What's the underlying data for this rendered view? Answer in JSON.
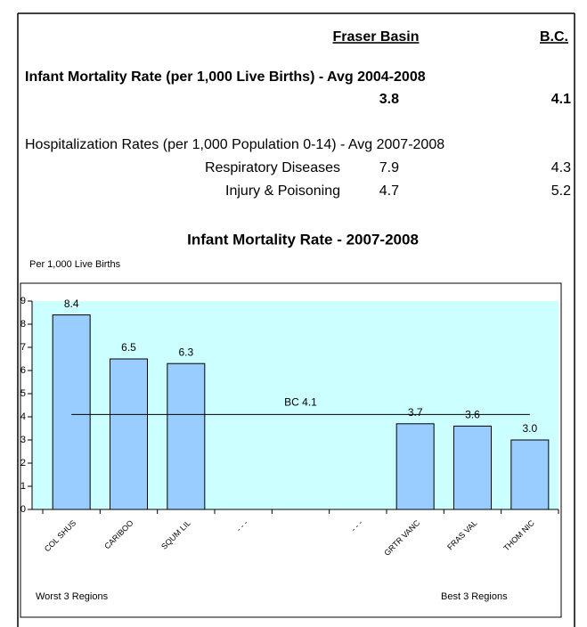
{
  "header": {
    "columns": [
      "Fraser Basin",
      "B.C."
    ]
  },
  "infant_mortality": {
    "label": "Infant Mortality Rate (per 1,000 Live Births) - Avg 2004-2008",
    "fraser_basin": "3.8",
    "bc": "4.1"
  },
  "hospitalization": {
    "title": "Hospitalization Rates (per 1,000 Population 0-14) - Avg 2007-2008",
    "rows": [
      [
        "Respiratory Diseases",
        "7.9",
        "4.3"
      ],
      [
        "Injury & Poisoning",
        "4.7",
        "5.2"
      ]
    ]
  },
  "chart_data": {
    "type": "bar",
    "title": "Infant Mortality Rate - 2007-2008",
    "y_label": "Per 1,000 Live Births",
    "categories": [
      "COL SHUS",
      "CARIBOO",
      "SQUM LIL",
      "- - -",
      null,
      "- - -",
      "GRTR VANC",
      "FRAS VAL",
      "THOM NIC"
    ],
    "values": [
      8.4,
      6.5,
      6.3,
      null,
      null,
      null,
      3.7,
      3.6,
      3.0
    ],
    "value_labels": [
      "8.4",
      "6.5",
      "6.3",
      null,
      null,
      null,
      "3.7",
      "3.6",
      "3.0"
    ],
    "color": "#99ccff",
    "background": "#ccffff",
    "ylim": [
      0,
      9
    ],
    "yticks": [
      0,
      1,
      2,
      3,
      4,
      5,
      6,
      7,
      8,
      9
    ],
    "reference": {
      "value": 4.1,
      "label": "BC 4.1"
    },
    "annotations": [
      "Worst 3 Regions",
      "Best 3 Regions"
    ]
  }
}
